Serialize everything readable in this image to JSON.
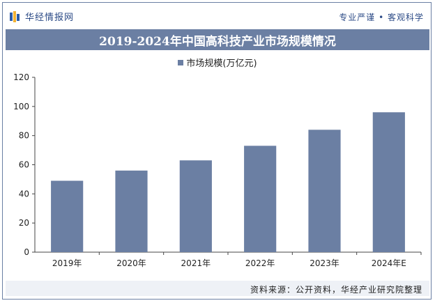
{
  "header": {
    "brand": "华经情报网",
    "slogan": "专业严谨 • 客观科学"
  },
  "chart_data": {
    "type": "bar",
    "title": "2019-2024年中国高科技产业市场规模情况",
    "categories": [
      "2019年",
      "2020年",
      "2021年",
      "2022年",
      "2023年",
      "2024年E"
    ],
    "series": [
      {
        "name": "市场规模(万亿元)",
        "values": [
          49,
          56,
          63,
          73,
          84,
          96
        ]
      }
    ],
    "yticks": [
      0,
      20,
      40,
      60,
      80,
      100,
      120
    ],
    "ylim": [
      0,
      120
    ],
    "xlabel": "",
    "ylabel": "",
    "legend_position": "top-center",
    "grid": false,
    "color": "#6b7fa3"
  },
  "source": "资料来源：公开资料，华经产业研究院整理"
}
